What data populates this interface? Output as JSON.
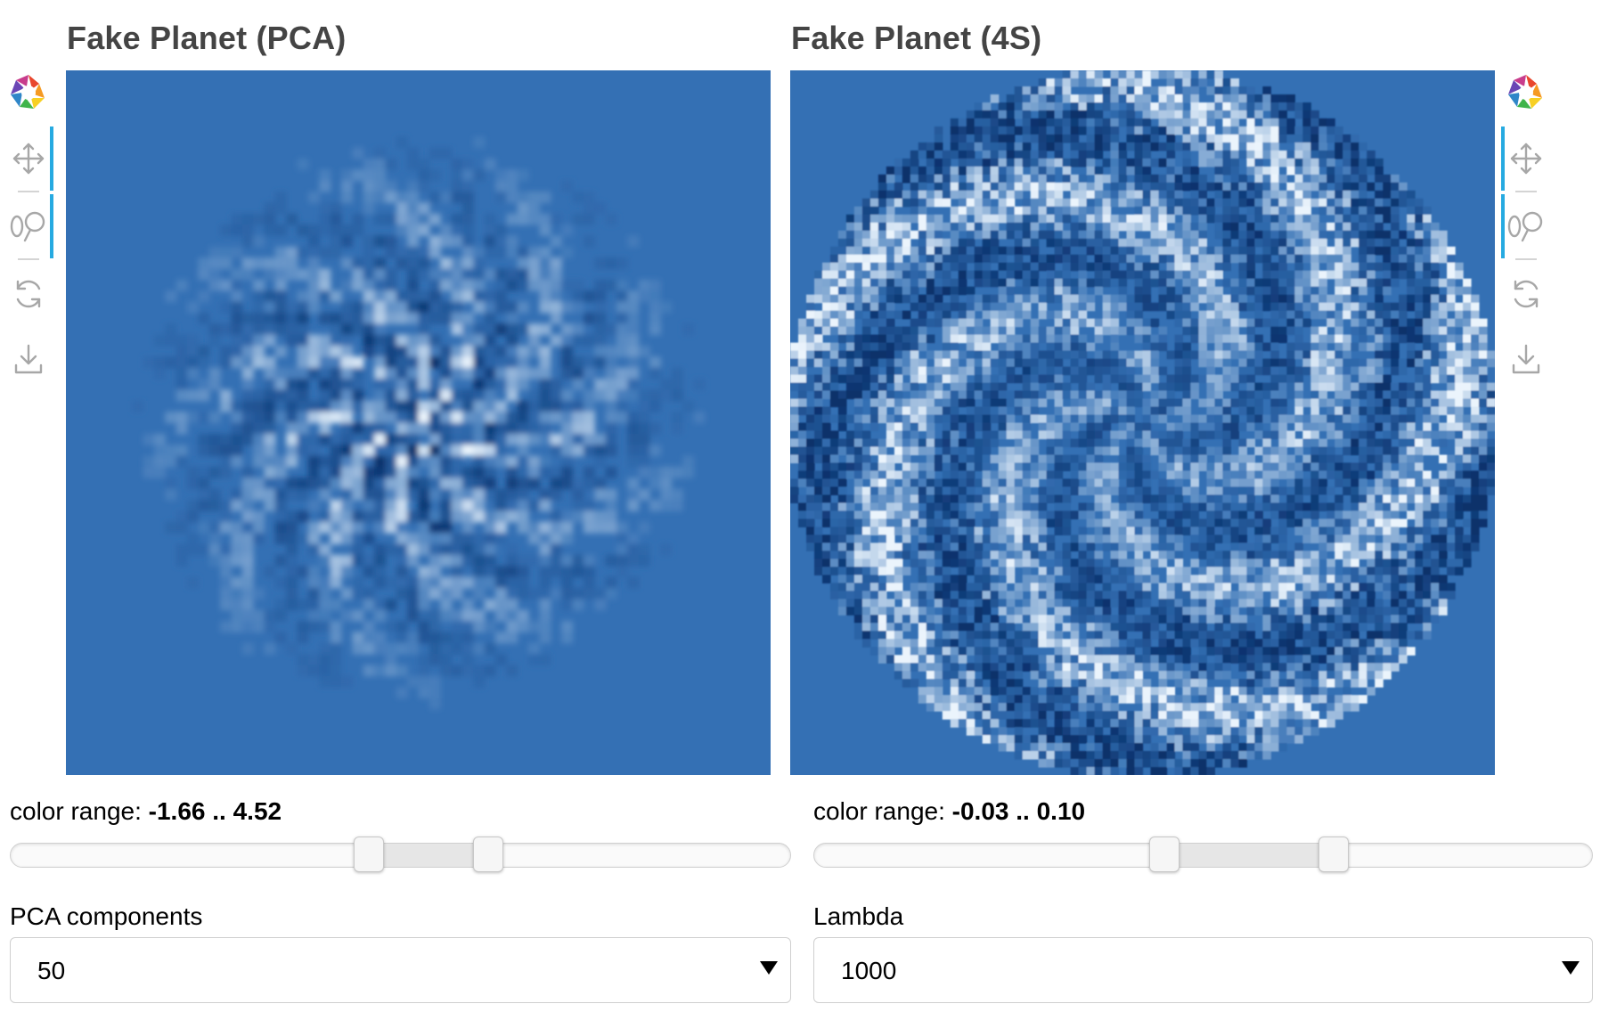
{
  "left_panel": {
    "title": "Fake Planet (PCA)",
    "color_range_label": "color range:",
    "color_range_value": "-1.66 .. 4.52",
    "slider": {
      "low_fraction": 0.459,
      "high_fraction": 0.612
    },
    "select_label": "PCA components",
    "select_value": "50"
  },
  "right_panel": {
    "title": "Fake Planet (4S)",
    "color_range_label": "color range:",
    "color_range_value": "-0.03 .. 0.10",
    "slider": {
      "low_fraction": 0.45,
      "high_fraction": 0.667
    },
    "select_label": "Lambda",
    "select_value": "1000"
  },
  "toolbar_icons": [
    "bokeh-logo-icon",
    "pan-icon",
    "wheel-zoom-icon",
    "reset-icon",
    "save-icon"
  ],
  "colors": {
    "image_base": "#3470b4",
    "image_dark": "#08306b",
    "image_light": "#f7fbff",
    "toolbar_active": "#26aae1",
    "title": "#444444"
  }
}
